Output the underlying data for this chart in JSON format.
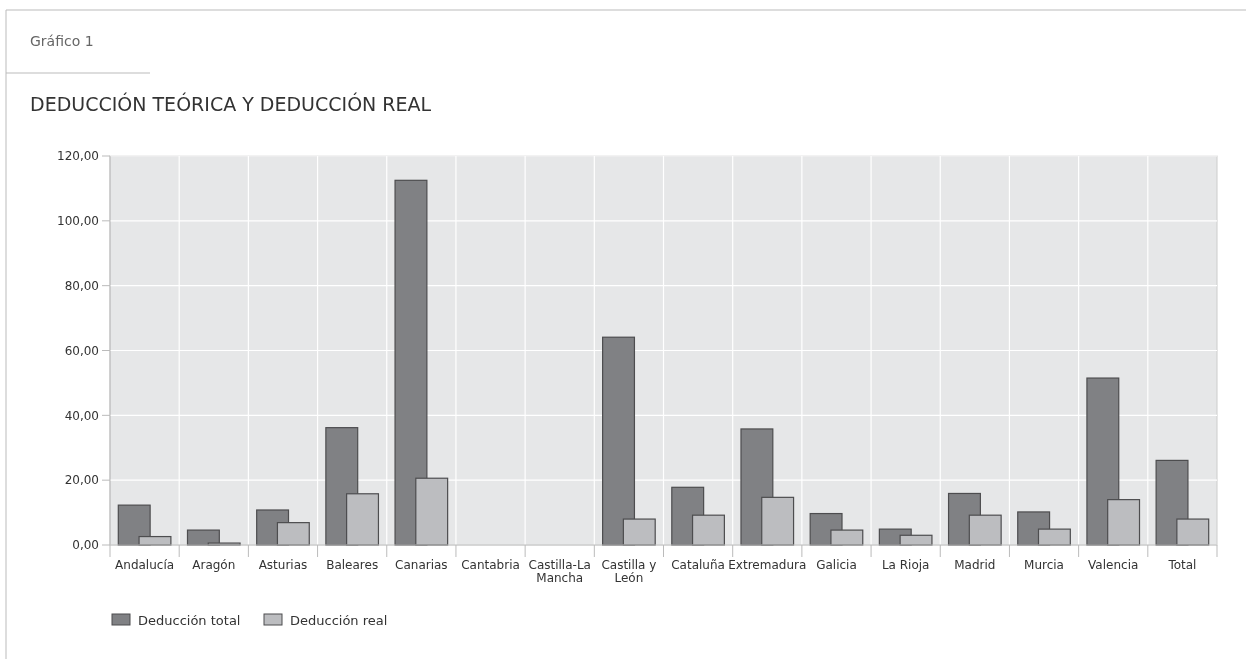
{
  "chart_data": {
    "type": "bar",
    "title": "DEDUCCIÓN TEÓRICA Y DEDUCCIÓN REAL",
    "annotations": [
      "Gráfico 1"
    ],
    "categories": [
      "Andalucía",
      "Aragón",
      "Asturias",
      "Baleares",
      "Canarias",
      "Cantabria",
      "Castilla-La Mancha",
      "Castilla y León",
      "Cataluña",
      "Extremadura",
      "Galicia",
      "La Rioja",
      "Madrid",
      "Murcia",
      "Valencia",
      "Total"
    ],
    "series": [
      {
        "name": "Deducción total",
        "color": "#808184",
        "values": [
          12.3,
          4.6,
          10.8,
          36.2,
          112.5,
          null,
          null,
          64.1,
          17.8,
          35.8,
          9.7,
          4.9,
          15.9,
          10.2,
          51.5,
          26.1
        ]
      },
      {
        "name": "Deducción real",
        "color": "#bcbdc0",
        "values": [
          2.6,
          0.6,
          6.9,
          15.8,
          20.6,
          null,
          null,
          8.0,
          9.2,
          14.7,
          4.6,
          3.0,
          9.2,
          4.9,
          14.0,
          8.0
        ]
      }
    ],
    "ylim": [
      0,
      120
    ],
    "yticks": [
      {
        "value": 0,
        "label": "0,00"
      },
      {
        "value": 20,
        "label": "20,00"
      },
      {
        "value": 40,
        "label": "40,00"
      },
      {
        "value": 60,
        "label": "60,00"
      },
      {
        "value": 80,
        "label": "80,00"
      },
      {
        "value": 100,
        "label": "100,00"
      },
      {
        "value": 120,
        "label": "120,00"
      }
    ],
    "grid": true,
    "legend": "bottom left"
  }
}
